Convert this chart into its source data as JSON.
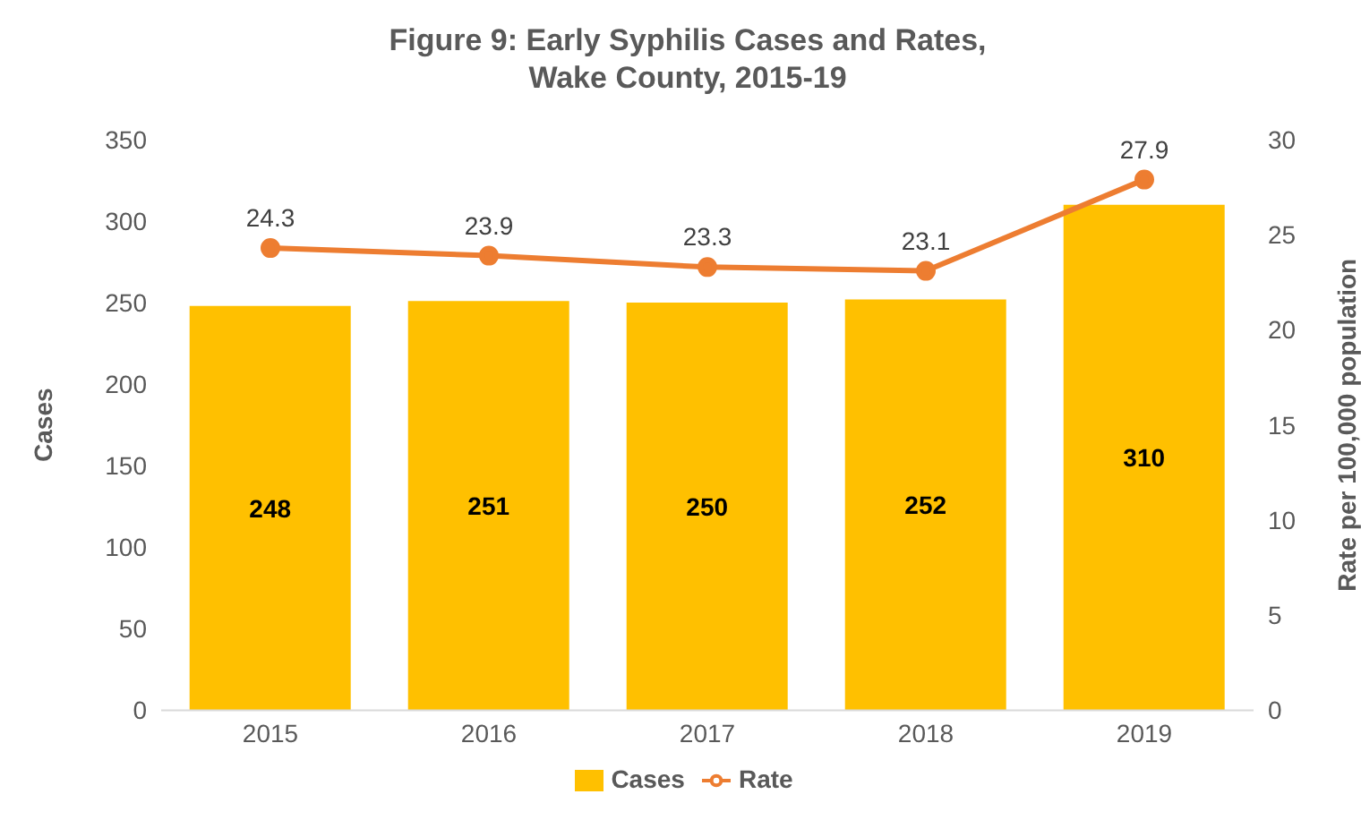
{
  "chart_data": {
    "type": "bar",
    "title": "Figure 9: Early Syphilis Cases and Rates,\nWake County, 2015-19",
    "categories": [
      "2015",
      "2016",
      "2017",
      "2018",
      "2019"
    ],
    "series": [
      {
        "name": "Cases",
        "color": "#ffc000",
        "values": [
          248,
          251,
          250,
          252,
          310
        ]
      },
      {
        "name": "Rate",
        "type": "line",
        "axis": "y2",
        "color": "#ed7d31",
        "values": [
          24.3,
          23.9,
          23.3,
          23.1,
          27.9
        ]
      }
    ],
    "ylabel": "Cases",
    "y2label": "Rate per 100,000 population",
    "ylim": [
      0,
      350
    ],
    "yticks": [
      0,
      50,
      100,
      150,
      200,
      250,
      300,
      350
    ],
    "y2lim": [
      0,
      30
    ],
    "y2ticks": [
      0,
      5,
      10,
      15,
      20,
      25,
      30
    ],
    "data_labels": true,
    "legend": "bottom",
    "marker": "circle"
  }
}
